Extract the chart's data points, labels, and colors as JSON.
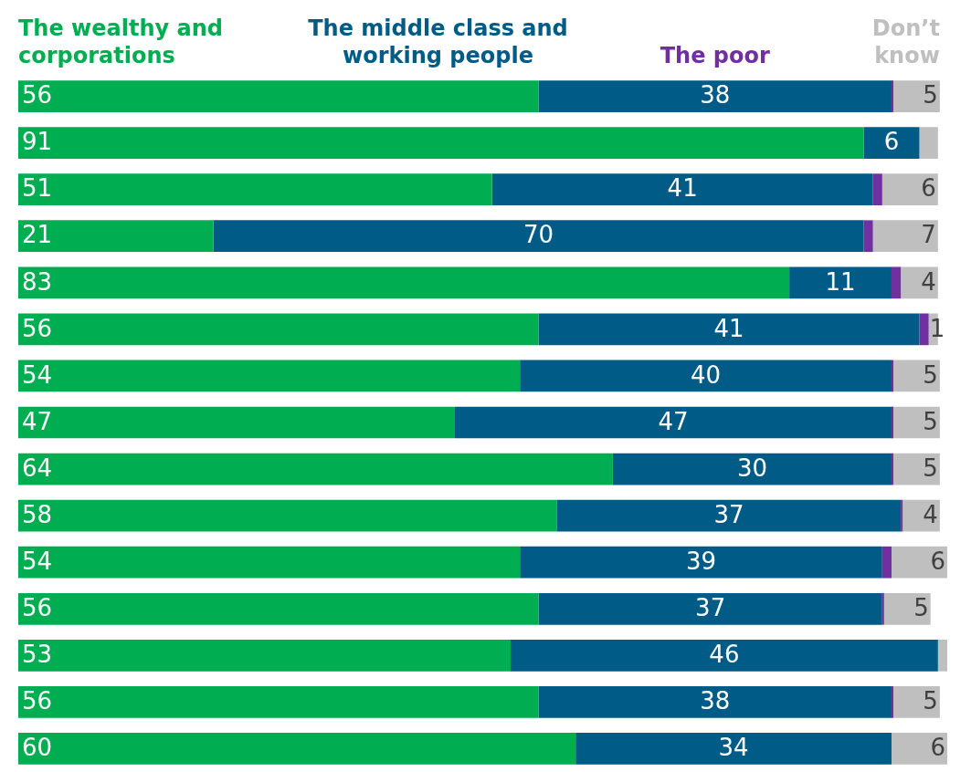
{
  "chart_data": {
    "type": "bar",
    "orientation": "horizontal",
    "stacked": true,
    "tick_labels": false,
    "grid": false,
    "categories": [
      null,
      null,
      null,
      null,
      null,
      null,
      null,
      null,
      null,
      null,
      null,
      null,
      null,
      null,
      null
    ],
    "xlim": [
      0,
      100
    ],
    "series": [
      {
        "name": "The wealthy and corporations",
        "color": "#00ad50",
        "values": [
          56,
          91,
          51,
          21,
          83,
          56,
          54,
          47,
          64,
          58,
          54,
          56,
          53,
          56,
          60
        ],
        "value_labels": [
          "56",
          "91",
          "51",
          "21",
          "83",
          "56",
          "54",
          "47",
          "64",
          "58",
          "54",
          "56",
          "53",
          "56",
          "60"
        ]
      },
      {
        "name": "The middle class and working people",
        "color": "#005b86",
        "values": [
          38,
          6,
          41,
          70,
          11,
          41,
          40,
          47,
          30,
          37,
          39,
          37,
          46,
          38,
          34
        ],
        "value_labels": [
          "38",
          "6",
          "41",
          "70",
          "11",
          "41",
          "40",
          "47",
          "30",
          "37",
          "39",
          "37",
          "46",
          "38",
          "34"
        ]
      },
      {
        "name": "The poor",
        "color": "#7030a0",
        "values": [
          0.2,
          0,
          1,
          1,
          1,
          1,
          0.2,
          0.2,
          0.2,
          0.2,
          1,
          0.2,
          0,
          0.2,
          0
        ],
        "value_labels": [
          null,
          null,
          null,
          null,
          null,
          "1",
          null,
          null,
          null,
          null,
          null,
          null,
          null,
          null,
          null
        ]
      },
      {
        "name": "Don’t know",
        "color": "#bfbfbf",
        "values": [
          5,
          2,
          6,
          7,
          4,
          1,
          5,
          5,
          5,
          4,
          6,
          5,
          1,
          5,
          6
        ],
        "value_labels": [
          "5",
          null,
          "6",
          "7",
          "4",
          null,
          "5",
          "5",
          "5",
          "4",
          "6",
          "5",
          null,
          "5",
          "6"
        ]
      }
    ]
  }
}
